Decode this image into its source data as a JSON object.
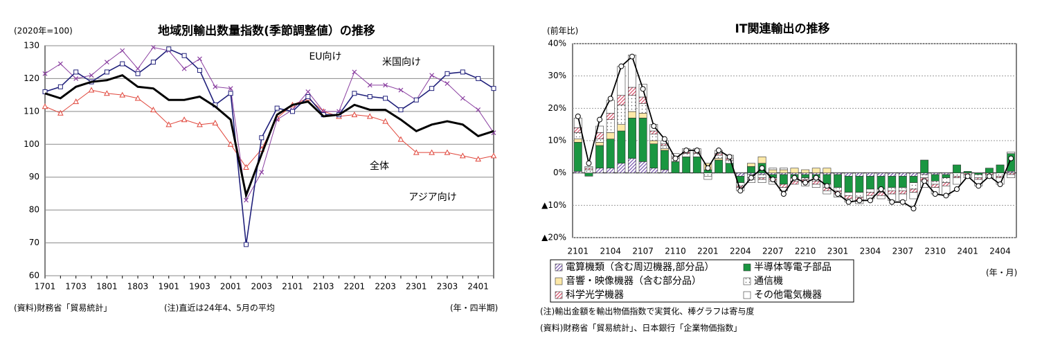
{
  "chart_data": [
    {
      "type": "line",
      "title": "地域別輸出数量指数(季節調整値）の推移",
      "unit_label": "(2020年=100)",
      "x_unit_label": "(年・四半期)",
      "notes": [
        "(資料)財務省「貿易統計」",
        "(注)直近は24年4、5月の平均"
      ],
      "categories": [
        "1701",
        null,
        "1703",
        null,
        "1801",
        null,
        "1803",
        null,
        "1901",
        null,
        "1903",
        null,
        "2001",
        null,
        "2003",
        null,
        "2101",
        null,
        "2103",
        null,
        "2201",
        null,
        "2203",
        null,
        "2301",
        null,
        "2303",
        null,
        "2401",
        null
      ],
      "ylim": [
        60,
        130
      ],
      "yticks": [
        60,
        70,
        80,
        90,
        100,
        110,
        120,
        130
      ],
      "grid": true,
      "series": [
        {
          "name": "全体",
          "color": "#000000",
          "marker": "none",
          "width": 3,
          "values": [
            115.5,
            114,
            117.5,
            119,
            119.5,
            121,
            117.5,
            117,
            113.5,
            113.5,
            114.5,
            111.5,
            107.5,
            84.5,
            97,
            109,
            112,
            113,
            108.5,
            109,
            112,
            110.5,
            110.5,
            107.5,
            104,
            106,
            107,
            106,
            102.5,
            104
          ]
        },
        {
          "name": "米国向け",
          "color": "#1f1f7a",
          "marker": "square",
          "width": 1.6,
          "values": [
            116,
            117.5,
            122,
            119,
            122,
            124.5,
            121.5,
            125,
            129,
            127,
            122.5,
            112,
            115.5,
            69.5,
            102,
            111,
            110,
            114.5,
            109,
            109,
            115.5,
            114.5,
            114,
            110.5,
            113.5,
            117,
            121.5,
            122,
            120,
            117
          ]
        },
        {
          "name": "EU向け",
          "color": "#8a3fa0",
          "marker": "cross",
          "width": 1,
          "values": [
            121.5,
            124.5,
            120,
            121,
            125,
            128.5,
            123,
            129.5,
            128.5,
            123,
            126,
            117.5,
            117,
            83,
            91.5,
            107.5,
            110.5,
            116,
            110,
            110,
            122,
            118,
            118,
            116.5,
            113.5,
            121,
            118.5,
            114,
            110.5,
            103.5
          ]
        },
        {
          "name": "アジア向け",
          "color": "#e0453a",
          "marker": "triangle",
          "width": 1,
          "values": [
            111.5,
            109.5,
            113,
            116.5,
            115.5,
            115,
            114,
            110.5,
            106,
            107.5,
            106,
            106.5,
            100,
            93,
            98.5,
            108,
            112,
            114,
            110,
            108.5,
            109,
            108.5,
            107,
            101.5,
            97.5,
            97.5,
            97.5,
            96.5,
            95.5,
            96.5
          ]
        }
      ]
    },
    {
      "type": "stacked_bar",
      "title": "IT関連輸出の推移",
      "unit_label": "(前年比)",
      "x_unit_label": "(年・月)",
      "notes": [
        "(注)輸出金額を輸出物価指数で実質化、棒グラフは寄与度",
        "(資料)財務省「貿易統計」、日本銀行「企業物価指数」"
      ],
      "categories": [
        "2101",
        null,
        null,
        "2104",
        null,
        null,
        "2107",
        null,
        null,
        "2110",
        null,
        null,
        "2201",
        null,
        null,
        "2204",
        null,
        null,
        "2207",
        null,
        null,
        "2210",
        null,
        null,
        "2301",
        null,
        null,
        "2304",
        null,
        null,
        "2307",
        null,
        null,
        "2310",
        null,
        null,
        "2401",
        null,
        null,
        "2404",
        null
      ],
      "ylim": [
        -20,
        40
      ],
      "yticks": [
        {
          "value": -20,
          "label": "▲20%"
        },
        {
          "value": -10,
          "label": "▲10%"
        },
        {
          "value": 0,
          "label": "0%"
        },
        {
          "value": 10,
          "label": "10%"
        },
        {
          "value": 20,
          "label": "20%"
        },
        {
          "value": 30,
          "label": "30%"
        },
        {
          "value": 40,
          "label": "40%"
        }
      ],
      "grid": true,
      "series": [
        {
          "name": "電算機類（含む周辺機器,部分品）",
          "color": "#7b5ab0",
          "pattern": "diagonal",
          "values": [
            0.5,
            0,
            1.5,
            1.5,
            3,
            4.5,
            3.5,
            1.5,
            1,
            0,
            0,
            0,
            0,
            0,
            0,
            -1,
            -0.5,
            -0.5,
            -0.5,
            -0.5,
            -0.5,
            -0.5,
            -0.5,
            -0.5,
            -0.5,
            -1,
            -1,
            -1,
            -1,
            -1,
            -1,
            -1,
            -0.5,
            -0.5,
            -0.5,
            0,
            0,
            0,
            0,
            0,
            0.5
          ]
        },
        {
          "name": "半導体等電子部品",
          "color": "#1a9641",
          "pattern": "solid",
          "values": [
            9,
            -1,
            7,
            9,
            10,
            12.5,
            13.5,
            7.5,
            6,
            3.5,
            5,
            5,
            1,
            4,
            3,
            -2,
            2,
            3,
            -1,
            -3,
            -1,
            -1,
            -1,
            -3,
            -4,
            -5,
            -5,
            -4,
            -4,
            -3.5,
            -3.5,
            -2,
            4,
            -2,
            -1,
            2.5,
            0.5,
            -0.5,
            1.5,
            2.5,
            5.5
          ]
        },
        {
          "name": "音響・映像機器（含む部分品）",
          "color": "#fde9a8",
          "pattern": "solid",
          "values": [
            1,
            0,
            1,
            2,
            2,
            2,
            1.5,
            1,
            0.5,
            0,
            0,
            0,
            2,
            0.5,
            0,
            0,
            1,
            2,
            1,
            1,
            1.5,
            1,
            1.5,
            1.5,
            0,
            0,
            0,
            0,
            0,
            0,
            0,
            0,
            0,
            0,
            0,
            0,
            0,
            0,
            0,
            0,
            0
          ]
        },
        {
          "name": "通信機",
          "color": "#555555",
          "pattern": "dots",
          "values": [
            2,
            1,
            1,
            4,
            6,
            5,
            3,
            2,
            1,
            1,
            1,
            1,
            -1,
            1,
            1,
            -1,
            -1,
            -1,
            0.5,
            0.5,
            -1,
            -0.5,
            -1,
            -1,
            -1,
            -1,
            -1.5,
            -1,
            -1,
            -1,
            -1,
            -2,
            -1,
            -1,
            -1.5,
            -1,
            0,
            -1,
            0,
            -1,
            0.5
          ]
        },
        {
          "name": "科学光学機器",
          "color": "#d9546e",
          "pattern": "diagonal",
          "values": [
            1.5,
            0.5,
            2,
            2,
            3,
            2.5,
            2,
            1,
            0.5,
            0.5,
            0.5,
            0.5,
            0,
            0.5,
            0.5,
            -0.5,
            -0.5,
            -0.5,
            -1,
            -1,
            -1,
            -1,
            -1,
            -1,
            -1,
            -1,
            -1,
            -1,
            -1,
            -1,
            -1,
            -1,
            -1,
            -1,
            -1,
            -0.5,
            -0.5,
            -0.5,
            -0.5,
            -0.5,
            -0.5
          ]
        },
        {
          "name": "その他電気機器",
          "color": "#ffffff",
          "pattern": "solid",
          "values": [
            3,
            0.5,
            2,
            4,
            9,
            10,
            4,
            2,
            1,
            1,
            1,
            1,
            -1,
            1,
            1,
            -1,
            -1,
            -1,
            -1,
            -1,
            0,
            -1,
            -1,
            -1,
            -1,
            -1,
            -1,
            -1,
            -1,
            -2,
            -2,
            -2,
            -2,
            -2,
            -3,
            -2,
            -1,
            -2,
            -1,
            -2,
            -1
          ]
        }
      ],
      "line": {
        "color": "#000000",
        "values": [
          17.5,
          3,
          16.5,
          23,
          33,
          36,
          26,
          14.5,
          10.5,
          4.5,
          7,
          7,
          1.5,
          7,
          5,
          -5.5,
          -1.5,
          1.5,
          -2,
          -6.5,
          -1.5,
          -3,
          -1.5,
          -4,
          -6.5,
          -9,
          -8.5,
          -8.5,
          -5,
          -9,
          -9,
          -11,
          -2.5,
          -6.5,
          -7,
          -5,
          -1,
          -4,
          -1,
          -3.5,
          4.5
        ]
      }
    }
  ]
}
